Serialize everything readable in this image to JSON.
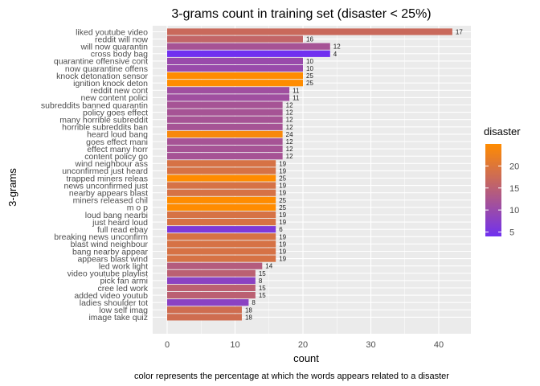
{
  "chart_data": {
    "type": "bar",
    "orientation": "horizontal",
    "title": "3-grams count in training set (disaster < 25%)",
    "xlabel": "count",
    "ylabel": "3-grams",
    "caption": "color represents the percentage at which the words appears related to a disaster",
    "xlim": [
      0,
      42
    ],
    "xticks": [
      0,
      10,
      20,
      30,
      40
    ],
    "grid": true,
    "legend": {
      "title": "disaster",
      "position": "right",
      "ticks": [
        5,
        10,
        15,
        20
      ],
      "range": [
        4,
        25
      ],
      "low_color": "#7030f0",
      "high_color": "#ff8c00"
    },
    "categories": [
      "liked youtube video",
      "reddit will now",
      "will now quarantin",
      "cross body bag",
      "quarantine offensive cont",
      "now quarantine offens",
      "knock detonation sensor",
      "ignition knock deton",
      "reddit new cont",
      "new content polici",
      "subreddits banned quarantin",
      "policy goes effect",
      "many horrible subreddit",
      "horrible subreddits ban",
      "heard loud bang",
      "goes effect mani",
      "effect many horr",
      "content policy go",
      "wind neighbour ass",
      "unconfirmed just heard",
      "trapped miners releas",
      "news unconfirmed just",
      "nearby appears blast",
      "miners released chil",
      "m o p",
      "loud bang nearbi",
      "just heard loud",
      "full read ebay",
      "breaking news unconfirm",
      "blast wind neighbour",
      "bang nearby appear",
      "appears blast wind",
      "led work light",
      "video youtube playlist",
      "pick fan armi",
      "cree led work",
      "added video youtub",
      "ladies shoulder tot",
      "low self imag",
      "image take quiz"
    ],
    "values": [
      42,
      20,
      24,
      24,
      20,
      20,
      20,
      20,
      18,
      18,
      17,
      17,
      17,
      17,
      17,
      17,
      17,
      17,
      16,
      16,
      16,
      16,
      16,
      16,
      16,
      16,
      16,
      16,
      16,
      16,
      16,
      16,
      14,
      13,
      13,
      13,
      13,
      12,
      11,
      11
    ],
    "labels": [
      "17",
      "16",
      "12",
      "4",
      "10",
      "10",
      "25",
      "25",
      "11",
      "11",
      "12",
      "12",
      "12",
      "12",
      "24",
      "12",
      "12",
      "12",
      "19",
      "19",
      "25",
      "19",
      "19",
      "25",
      "25",
      "19",
      "19",
      "6",
      "19",
      "19",
      "19",
      "19",
      "14",
      "15",
      "8",
      "15",
      "15",
      "8",
      "18",
      "18"
    ]
  }
}
